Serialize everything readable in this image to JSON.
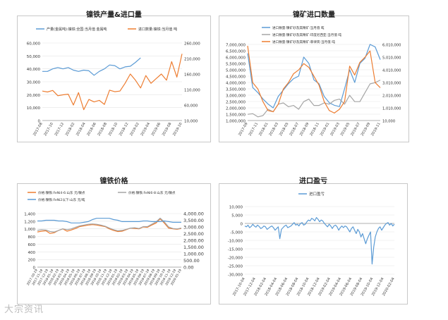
{
  "titles": {
    "p1": "镍铁产量&进口量",
    "p2": "镍矿进口数量",
    "p3": "镍铁价格",
    "p4": "进口盈亏"
  },
  "watermark": "大宗资讯",
  "chart_data": [
    {
      "type": "line",
      "title": "镍铁产量&进口量",
      "x": [
        "2017-08",
        "2017-09",
        "2017-10",
        "2017-11",
        "2017-12",
        "2018-01",
        "2018-02",
        "2018-03",
        "2018-04",
        "2018-05",
        "2018-06",
        "2018-07",
        "2018-08",
        "2018-09",
        "2018-10",
        "2018-11",
        "2018-12",
        "2019-01",
        "2019-02",
        "2019-03",
        "2019-04",
        "2019-05",
        "2019-06",
        "2019-07",
        "2019-08",
        "2019-09",
        "2019-10",
        "2019-11"
      ],
      "xticks": [
        "2017-08",
        "2017-10",
        "2017-12",
        "2018-02",
        "2018-04",
        "2018-06",
        "2018-08",
        "2018-10",
        "2018-12",
        "2019-02",
        "2019-04",
        "2019-06",
        "2019-08",
        "2019-10"
      ],
      "left_axis": {
        "ylim": [
          0,
          60000
        ],
        "ticks": [
          "0",
          "10,000",
          "20,000",
          "30,000",
          "40,000",
          "50,000",
          "60,000"
        ]
      },
      "right_axis": {
        "ylim": [
          10000,
          260000
        ],
        "ticks": [
          "10,000",
          "60,000",
          "110,000",
          "160,000",
          "210,000",
          "260,000"
        ]
      },
      "series": [
        {
          "name": "产量(金属吨):镍铁:全国:当月值 金属吨",
          "axis": "left",
          "color": "#5b9bd5",
          "values": [
            38000,
            38000,
            40000,
            41000,
            40000,
            41000,
            39000,
            38000,
            39000,
            38500,
            35000,
            38000,
            40000,
            43000,
            42500,
            40000,
            41500,
            42000,
            45000,
            48500,
            null,
            null,
            null,
            null,
            null,
            null,
            null,
            null
          ]
        },
        {
          "name": "进口数量:镍铁:当月值 吨",
          "axis": "right",
          "color": "#ed7d31",
          "values": [
            105000,
            102000,
            107000,
            90000,
            93000,
            95000,
            60000,
            100000,
            45000,
            78000,
            70000,
            75000,
            62000,
            108000,
            103000,
            105000,
            130000,
            160000,
            140000,
            115000,
            155000,
            130000,
            145000,
            160000,
            140000,
            200000,
            150000,
            225000
          ]
        }
      ]
    },
    {
      "type": "line",
      "title": "镍矿进口数量",
      "x": [
        "2017-09",
        "2017-10",
        "2017-11",
        "2017-12",
        "2018-01",
        "2018-02",
        "2018-03",
        "2018-04",
        "2018-05",
        "2018-06",
        "2018-07",
        "2018-08",
        "2018-09",
        "2018-10",
        "2018-11",
        "2018-12",
        "2019-01",
        "2019-02",
        "2019-03",
        "2019-04",
        "2019-05",
        "2019-06",
        "2019-07",
        "2019-08",
        "2019-09",
        "2019-10",
        "2019-11"
      ],
      "xticks": [
        "2017-09",
        "2017-11",
        "2018-01",
        "2018-03",
        "2018-05",
        "2018-07",
        "2018-09",
        "2018-11",
        "2019-01",
        "2019-03",
        "2019-05",
        "2019-07",
        "2019-09",
        "2019-11"
      ],
      "left_axis": {
        "ylim": [
          1000000,
          7000000
        ],
        "ticks": [
          "1,000,000",
          "1,500,000",
          "2,000,000",
          "2,500,000",
          "3,000,000",
          "3,500,000",
          "4,000,000",
          "4,500,000",
          "5,000,000",
          "5,500,000",
          "6,000,000",
          "6,500,000",
          "7,000,000"
        ]
      },
      "right_axis": {
        "ylim": [
          10000,
          6010000
        ],
        "ticks": [
          "10,000",
          "1,010,000",
          "2,010,000",
          "3,010,000",
          "4,010,000",
          "5,010,000",
          "6,010,000"
        ]
      },
      "series": [
        {
          "name": "进口数量:镍矿砂及其精矿:当月值 吨",
          "axis": "left",
          "color": "#5b9bd5",
          "values": [
            6300000,
            3600000,
            3200000,
            2700000,
            2300000,
            2000000,
            2900000,
            3400000,
            3900000,
            4300000,
            4500000,
            6000000,
            5500000,
            4200000,
            3900000,
            2900000,
            2400000,
            2200000,
            2100000,
            3500000,
            5000000,
            4000000,
            5500000,
            5900000,
            7000000,
            6800000,
            5800000
          ]
        },
        {
          "name": "进口数量:镍矿砂及其精矿:印度尼西亚:当月值 吨",
          "axis": "right",
          "color": "#a5a5a5",
          "values": [
            500000,
            550000,
            300000,
            400000,
            900000,
            700000,
            1300000,
            1400000,
            1100000,
            1200000,
            900000,
            1500000,
            1700000,
            1200000,
            1200000,
            1400000,
            1300000,
            1600000,
            1700000,
            1300000,
            2000000,
            1500000,
            1500000,
            2200000,
            2900000,
            3000000,
            3200000
          ]
        },
        {
          "name": "进口数量:镍矿砂及其精矿:菲律宾:当月值 吨",
          "axis": "right",
          "color": "#ed7d31",
          "values": [
            5900000,
            3000000,
            2500000,
            1500000,
            800000,
            700000,
            1300000,
            2500000,
            3000000,
            3700000,
            4000000,
            4500000,
            4200000,
            3500000,
            2800000,
            1500000,
            800000,
            600000,
            900000,
            1500000,
            4300000,
            3600000,
            4600000,
            5000000,
            5500000,
            3000000,
            2600000
          ]
        }
      ]
    },
    {
      "type": "line",
      "title": "镍铁价格",
      "xticks": [
        "2017-10-19",
        "2017-11-19",
        "2017-12-19",
        "2018-01-19",
        "2018-02-19",
        "2018-03-19",
        "2018-04-19",
        "2018-05-19",
        "2018-06-19",
        "2018-07-19",
        "2018-08-19",
        "2018-09-19",
        "2018-10-19",
        "2018-11-19",
        "2018-12-19",
        "2019-01-19",
        "2019-02-19",
        "2019-03-19",
        "2019-04-19",
        "2019-05-19",
        "2019-06-19",
        "2019-07-19",
        "2019-08-19",
        "2019-09-19",
        "2019-10-19",
        "2019-11-19",
        "2019-12-19",
        "2020-01-19"
      ],
      "left_axis": {
        "ylim": [
          0,
          1400
        ],
        "ticks": [
          "0",
          "200",
          "400",
          "600",
          "800",
          "1,000",
          "1,200",
          "1,400"
        ]
      },
      "right_axis": {
        "ylim": [
          0,
          4000
        ],
        "ticks": [
          "0.00",
          "500.00",
          "1,000.00",
          "1,500.00",
          "2,000.00",
          "2,500.00",
          "3,000.00",
          "3,500.00",
          "4,000.00"
        ]
      },
      "series": [
        {
          "name": "价格:镍铁:FeNi4-6:山东 元/镍点",
          "axis": "left",
          "color": "#ed7d31",
          "values": [
            920,
            940,
            950,
            880,
            900,
            960,
            1000,
            940,
            970,
            1010,
            1060,
            1080,
            1100,
            1110,
            1100,
            1080,
            1060,
            1000,
            960,
            930,
            940,
            980,
            1020,
            1010,
            1000,
            1050,
            1040,
            1100,
            1150,
            1260,
            1150,
            1020,
            1000,
            990,
            1010
          ]
        },
        {
          "name": "价格:镍铁:FeNi6-8:山东 元/镍点",
          "axis": "left",
          "color": "#a5a5a5",
          "values": [
            960,
            980,
            970,
            930,
            920,
            960,
            1000,
            980,
            1000,
            1040,
            1080,
            1100,
            1120,
            1130,
            1120,
            1100,
            1070,
            1020,
            980,
            950,
            960,
            990,
            1020,
            1030,
            1010,
            1060,
            1060,
            1120,
            1180,
            1280,
            1180,
            1050,
            1010,
            1000,
            1020
          ]
        },
        {
          "name": "价格:镍铁:FeNi2以下:山东 元/吨",
          "axis": "right",
          "color": "#5b9bd5",
          "values": [
            3450,
            3450,
            3500,
            3500,
            3500,
            3450,
            3450,
            3400,
            3300,
            3300,
            3300,
            3350,
            3400,
            3550,
            3650,
            3650,
            3650,
            3650,
            3550,
            3500,
            3400,
            3400,
            3400,
            3400,
            3400,
            3450,
            3450,
            3400,
            3400,
            3400,
            3450,
            3400,
            3350,
            3350,
            3350
          ]
        }
      ]
    },
    {
      "type": "line",
      "title": "进口盈亏",
      "xticks": [
        "2017-10-04",
        "2017-12-04",
        "2018-02-04",
        "2018-04-04",
        "2018-06-04",
        "2018-08-04",
        "2018-10-04",
        "2018-12-04",
        "2019-02-04",
        "2019-04-04",
        "2019-06-04",
        "2019-08-04",
        "2019-10-04",
        "2019-12-04",
        "2020-02-04"
      ],
      "ylim": [
        -30000,
        10000
      ],
      "yticks": [
        "-30,000",
        "-25,000",
        "-20,000",
        "-15,000",
        "-10,000",
        "-5,000",
        "0",
        "5,000",
        "10,000"
      ],
      "series": [
        {
          "name": "进口盈亏",
          "color": "#5b9bd5",
          "values": [
            -1500,
            -2000,
            -1000,
            -2500,
            -1800,
            -500,
            -1500,
            -2200,
            -1000,
            -1800,
            -3000,
            -2500,
            -1500,
            -2000,
            -3500,
            -2800,
            -2000,
            -1500,
            -2500,
            -4000,
            -3000,
            -2000,
            -9000,
            -3500,
            -2500,
            -1500,
            -1000,
            -2500,
            -2000,
            -1500,
            -500,
            500,
            -1000,
            -500,
            -1500,
            0,
            500,
            -1000,
            -500,
            1000,
            2000,
            1500,
            3000,
            2500,
            1500,
            3500,
            2500,
            1000,
            2000,
            1500,
            0,
            -1000,
            -2000,
            -500,
            -1500,
            -3000,
            -1500,
            -1000,
            -2000,
            -4000,
            -2500,
            -1500,
            -2500,
            -1500,
            -2000,
            -3500,
            -5000,
            -3000,
            -2000,
            -4000,
            -6000,
            -3500,
            -5000,
            -8000,
            -6000,
            -9000,
            -12000,
            -9000,
            -7000,
            -5000,
            -24000,
            -14000,
            -8000,
            -5000,
            -3000,
            -2000,
            -4000,
            -2500,
            -1000,
            0,
            500,
            -1000,
            0,
            -1500,
            -500
          ]
        }
      ]
    }
  ]
}
